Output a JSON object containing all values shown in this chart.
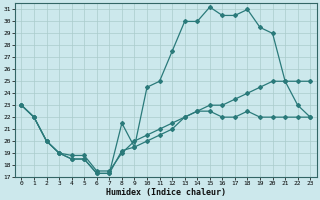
{
  "title": "",
  "xlabel": "Humidex (Indice chaleur)",
  "background_color": "#cce8ec",
  "grid_color": "#aacccc",
  "line_color": "#2a7a7a",
  "xlim": [
    -0.5,
    23.5
  ],
  "ylim": [
    17,
    31.5
  ],
  "yticks": [
    17,
    18,
    19,
    20,
    21,
    22,
    23,
    24,
    25,
    26,
    27,
    28,
    29,
    30,
    31
  ],
  "xticks": [
    0,
    1,
    2,
    3,
    4,
    5,
    6,
    7,
    8,
    9,
    10,
    11,
    12,
    13,
    14,
    15,
    16,
    17,
    18,
    19,
    20,
    21,
    22,
    23
  ],
  "line1_x": [
    0,
    1,
    2,
    3,
    4,
    5,
    6,
    7,
    8,
    9,
    10,
    11,
    12,
    13,
    14,
    15,
    16,
    17,
    18,
    19,
    20,
    21,
    22,
    23
  ],
  "line1_y": [
    23,
    22,
    20,
    19,
    18.5,
    18.5,
    17.3,
    17.3,
    21.5,
    19.5,
    24.5,
    25,
    27.5,
    30,
    30,
    31.2,
    30.5,
    30.5,
    31,
    29.5,
    29.0,
    25,
    23,
    22
  ],
  "line2_x": [
    0,
    1,
    2,
    3,
    4,
    5,
    6,
    7,
    8,
    9,
    10,
    11,
    12,
    13,
    14,
    15,
    16,
    17,
    18,
    19,
    20,
    21,
    22,
    23
  ],
  "line2_y": [
    23,
    22,
    20,
    19,
    18.8,
    18.8,
    17.5,
    17.5,
    19,
    20,
    20.5,
    21,
    21.5,
    22,
    22.5,
    22.5,
    22,
    22,
    22.5,
    22,
    22,
    22,
    22,
    22
  ],
  "line3_x": [
    0,
    1,
    2,
    3,
    4,
    5,
    6,
    7,
    8,
    9,
    10,
    11,
    12,
    13,
    14,
    15,
    16,
    17,
    18,
    19,
    20,
    21,
    22,
    23
  ],
  "line3_y": [
    23,
    22,
    20,
    19,
    18.5,
    18.5,
    17.3,
    17.3,
    19.2,
    19.5,
    20,
    20.5,
    21,
    22,
    22.5,
    23,
    23,
    23.5,
    24,
    24.5,
    25,
    25,
    25,
    25
  ]
}
